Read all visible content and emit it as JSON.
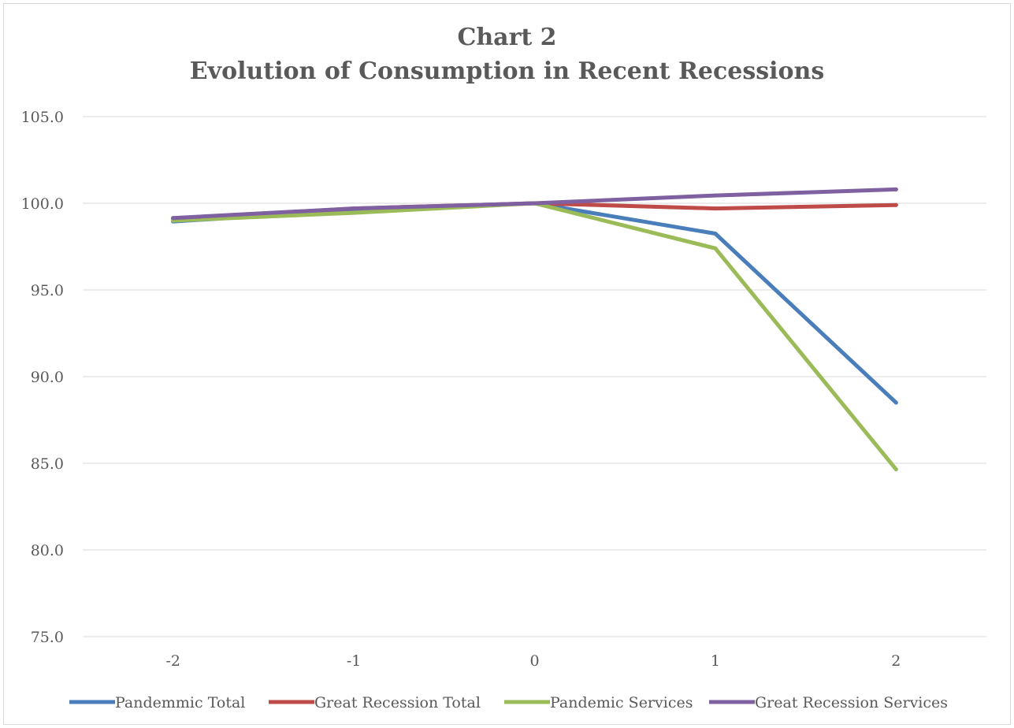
{
  "chart_data": {
    "type": "line",
    "title": "Chart 2",
    "subtitle": "Evolution of Consumption in Recent Recessions",
    "xlabel": "",
    "ylabel": "",
    "categories": [
      "-2",
      "-1",
      "0",
      "1",
      "2"
    ],
    "ylim": [
      75.0,
      105.0
    ],
    "yticks": [
      "105.0",
      "100.0",
      "95.0",
      "90.0",
      "85.0",
      "80.0",
      "75.0"
    ],
    "grid": true,
    "legend_position": "bottom",
    "series": [
      {
        "name": "Pandemmic Total",
        "color": "#4a7ebb",
        "values": [
          98.95,
          99.6,
          100.0,
          98.25,
          88.5
        ]
      },
      {
        "name": "Great Recession Total",
        "color": "#be4b48",
        "values": [
          99.1,
          99.7,
          100.0,
          99.7,
          99.9
        ]
      },
      {
        "name": "Pandemic Services",
        "color": "#9bbb59",
        "values": [
          99.0,
          99.45,
          100.0,
          97.4,
          84.65
        ]
      },
      {
        "name": "Great Recession Services",
        "color": "#7f60a0",
        "values": [
          99.15,
          99.7,
          100.0,
          100.45,
          100.8
        ]
      }
    ]
  }
}
